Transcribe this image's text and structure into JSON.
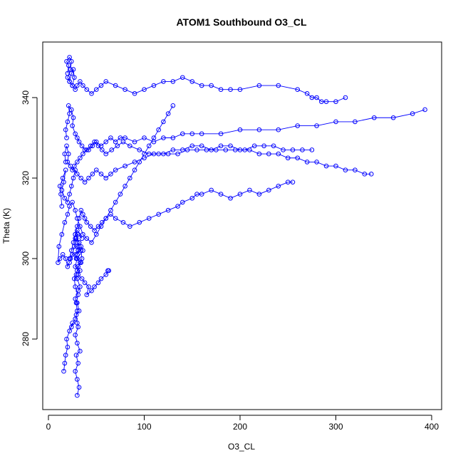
{
  "chart_data": {
    "type": "line",
    "title": "ATOM1 Southbound O3_CL",
    "xlabel": "O3_CL",
    "ylabel": "Theta (K)",
    "xlim": [
      0,
      400
    ],
    "ylim": [
      263,
      352
    ],
    "x_ticks": [
      0,
      100,
      200,
      300,
      400
    ],
    "y_ticks": [
      280,
      300,
      320,
      340
    ],
    "grid": false,
    "legend": "none",
    "marker": "open-circle",
    "color": "#0000FF",
    "series": [
      {
        "x": [
          30,
          32,
          30,
          28,
          31,
          29,
          33,
          30,
          28,
          31,
          30,
          29,
          32,
          30,
          28,
          31,
          33,
          30,
          29,
          31,
          34,
          30,
          28,
          31,
          30,
          32,
          29,
          31,
          35,
          30,
          28,
          32,
          31,
          29,
          30,
          34,
          36,
          30,
          28,
          33,
          31,
          35,
          38,
          42,
          40,
          45,
          48,
          52,
          55,
          60,
          63,
          62
        ],
        "y": [
          266,
          268,
          270,
          272,
          274,
          276,
          277,
          279,
          281,
          283,
          284,
          286,
          287,
          289,
          290,
          292,
          293,
          295,
          296,
          298,
          299,
          300,
          301,
          302,
          303,
          304,
          305,
          306,
          305,
          307,
          306,
          304,
          302,
          300,
          301,
          303,
          302,
          300,
          298,
          297,
          296,
          295,
          294,
          293,
          291,
          292,
          293,
          294,
          295,
          296,
          297,
          297
        ]
      },
      {
        "x": [
          16,
          17,
          18,
          20,
          19,
          22,
          25,
          24,
          28,
          30,
          29,
          31,
          28,
          27,
          30,
          33,
          35,
          34,
          32,
          30,
          28,
          27,
          25,
          23,
          22,
          20,
          18,
          15,
          12,
          10,
          11,
          14,
          17,
          20,
          22,
          25,
          28,
          30,
          33,
          36,
          40,
          45,
          50,
          55,
          60,
          65,
          70,
          78,
          85,
          95,
          105,
          115,
          125,
          135,
          140,
          150,
          155,
          160,
          170,
          180,
          190,
          200,
          210,
          220,
          230,
          240,
          250,
          255
        ],
        "y": [
          272,
          274,
          276,
          278,
          280,
          282,
          284,
          283,
          285,
          287,
          289,
          291,
          293,
          295,
          297,
          299,
          300,
          302,
          303,
          304,
          305,
          303,
          301,
          300,
          299,
          298,
          300,
          301,
          300,
          299,
          303,
          306,
          309,
          311,
          313,
          314,
          312,
          310,
          308,
          306,
          305,
          304,
          306,
          308,
          310,
          311,
          310,
          309,
          308,
          309,
          310,
          311,
          312,
          313,
          314,
          315,
          316,
          316,
          317,
          316,
          315,
          316,
          317,
          316,
          317,
          318,
          319,
          319
        ]
      },
      {
        "x": [
          14,
          13,
          12,
          15,
          18,
          16,
          14,
          17,
          20,
          22,
          24,
          26,
          28,
          30,
          34,
          38,
          42,
          46,
          50,
          55,
          60,
          65,
          70,
          80,
          90,
          100,
          110,
          120,
          130,
          140,
          150,
          160,
          170,
          180,
          190,
          200,
          210,
          220,
          230,
          240,
          250,
          260,
          270,
          280,
          290,
          300,
          310,
          320,
          330,
          337
        ],
        "y": [
          313,
          316,
          318,
          320,
          322,
          319,
          317,
          315,
          314,
          316,
          318,
          320,
          322,
          321,
          320,
          319,
          320,
          321,
          322,
          321,
          320,
          321,
          322,
          323,
          324,
          325,
          326,
          326,
          327,
          327,
          328,
          328,
          327,
          328,
          328,
          327,
          327,
          326,
          326,
          326,
          325,
          325,
          324,
          324,
          323,
          323,
          322,
          322,
          321,
          321
        ]
      },
      {
        "x": [
          19,
          18,
          20,
          22,
          21,
          24,
          26,
          25,
          28,
          30,
          32,
          35,
          38,
          42,
          46,
          50,
          55,
          60,
          65,
          70,
          75,
          80,
          90,
          100,
          110,
          120,
          130,
          140,
          150,
          160,
          180,
          200,
          220,
          240,
          260,
          280,
          300,
          320,
          340,
          360,
          380,
          393
        ],
        "y": [
          330,
          332,
          334,
          336,
          338,
          337,
          335,
          333,
          331,
          330,
          329,
          328,
          327,
          327,
          328,
          329,
          328,
          329,
          330,
          329,
          330,
          330,
          329,
          330,
          329,
          330,
          330,
          331,
          331,
          331,
          331,
          332,
          332,
          332,
          333,
          333,
          334,
          334,
          335,
          335,
          336,
          337
        ]
      },
      {
        "x": [
          20,
          21,
          19,
          22,
          24,
          23,
          20,
          22,
          25,
          27,
          26,
          24,
          22,
          25,
          28,
          30,
          33,
          36,
          40,
          45,
          50,
          55,
          60,
          70,
          80,
          90,
          100,
          110,
          120,
          130,
          140,
          150,
          160,
          170,
          180,
          190,
          200,
          220,
          240,
          260,
          270,
          275,
          280,
          285,
          290,
          300,
          310
        ],
        "y": [
          346,
          348,
          349,
          350,
          349,
          347,
          345,
          344,
          343,
          345,
          347,
          346,
          344,
          343,
          342,
          343,
          344,
          343,
          342,
          341,
          342,
          343,
          344,
          343,
          342,
          341,
          342,
          343,
          344,
          344,
          345,
          344,
          343,
          343,
          342,
          342,
          342,
          343,
          343,
          342,
          341,
          340,
          340,
          339,
          339,
          339,
          340
        ]
      },
      {
        "x": [
          18,
          17,
          19,
          21,
          20,
          23,
          25,
          27,
          30,
          33,
          36,
          40,
          44,
          48,
          52,
          56,
          60,
          66,
          72,
          78,
          85,
          95,
          105,
          115,
          125,
          135,
          145,
          155,
          165,
          175,
          185,
          195,
          205,
          215,
          225,
          235,
          245,
          255,
          265,
          275
        ],
        "y": [
          324,
          326,
          328,
          326,
          324,
          323,
          322,
          323,
          324,
          325,
          326,
          327,
          328,
          329,
          328,
          327,
          326,
          327,
          328,
          329,
          328,
          327,
          326,
          326,
          326,
          326,
          327,
          327,
          327,
          327,
          327,
          327,
          327,
          328,
          328,
          328,
          327,
          327,
          327,
          327
        ]
      },
      {
        "x": [
          22,
          24,
          26,
          28,
          30,
          32,
          34,
          36,
          38,
          40,
          44,
          48,
          52,
          56,
          60,
          65,
          70,
          75,
          80,
          85,
          90,
          95,
          100,
          105,
          110,
          115,
          120,
          125,
          130
        ],
        "y": [
          300,
          302,
          304,
          306,
          308,
          310,
          312,
          311,
          310,
          309,
          308,
          307,
          308,
          309,
          310,
          312,
          314,
          316,
          318,
          320,
          322,
          324,
          326,
          328,
          330,
          332,
          334,
          336,
          338
        ]
      }
    ]
  }
}
